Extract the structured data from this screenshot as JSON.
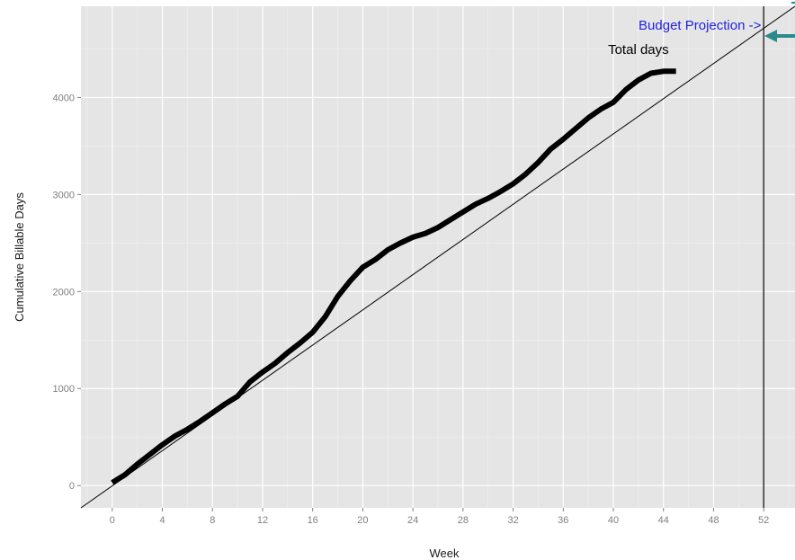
{
  "chart_data": {
    "type": "line",
    "title": "",
    "xlabel": "Week",
    "ylabel": "Cumulative Billable Days",
    "xlim": [
      -2.5,
      54.5
    ],
    "ylim": [
      -230,
      4940
    ],
    "x_ticks": [
      0,
      4,
      8,
      12,
      16,
      20,
      24,
      28,
      32,
      36,
      40,
      44,
      48,
      52
    ],
    "y_ticks": [
      0,
      1000,
      2000,
      3000,
      4000
    ],
    "grid": true,
    "background": "#e5e5e5",
    "series": [
      {
        "name": "Total days",
        "style": "thick",
        "color": "#000000",
        "x": [
          0,
          1,
          2,
          3,
          4,
          5,
          6,
          7,
          8,
          9,
          10,
          11,
          12,
          13,
          14,
          15,
          16,
          17,
          18,
          19,
          20,
          21,
          22,
          23,
          24,
          25,
          26,
          27,
          28,
          29,
          30,
          31,
          32,
          33,
          34,
          35,
          36,
          37,
          38,
          39,
          40,
          41,
          42,
          43,
          44,
          45
        ],
        "y": [
          30,
          110,
          220,
          320,
          420,
          510,
          580,
          660,
          750,
          840,
          920,
          1070,
          1170,
          1260,
          1370,
          1470,
          1580,
          1740,
          1950,
          2110,
          2250,
          2330,
          2430,
          2500,
          2560,
          2600,
          2660,
          2740,
          2820,
          2900,
          2960,
          3030,
          3110,
          3210,
          3330,
          3470,
          3570,
          3680,
          3790,
          3880,
          3950,
          4080,
          4180,
          4250,
          4270,
          4270
        ]
      },
      {
        "name": "Budget Projection",
        "style": "thin",
        "color": "#000000",
        "x": [
          -2.5,
          54.5
        ],
        "y": [
          -230,
          4940
        ]
      }
    ],
    "vlines": [
      {
        "x": 52,
        "color": "#000000"
      }
    ],
    "annotations": [
      {
        "text": "Budget Projection  ->",
        "color": "#2222dd",
        "x": 51.8,
        "y": 4700,
        "anchor": "end"
      },
      {
        "text": "Total days",
        "color": "#000000",
        "x": 42,
        "y": 4450,
        "anchor": "middle"
      }
    ],
    "callout_arrow_color": "#2a8a8a"
  }
}
